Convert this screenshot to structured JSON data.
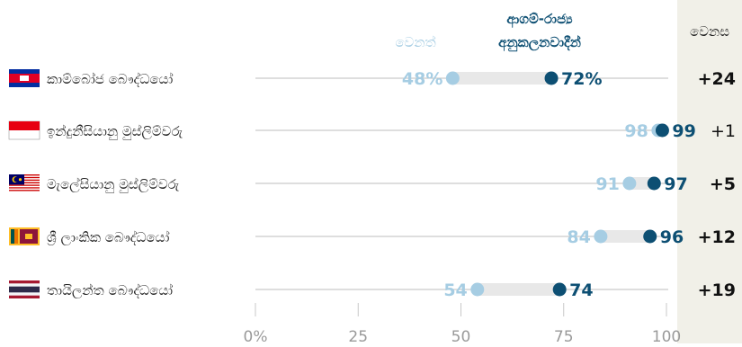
{
  "chart_data": {
    "type": "dot",
    "legend": {
      "other": "වෙනත්",
      "pro_religious": "ආගම්-රාජ්‍ය අනුකලනවාදීන්",
      "diff": "වෙනස"
    },
    "categories": [
      "කාම්බෝජ බෞද්ධයෝ",
      "ඉන්දුනීසියානු මුස්ලිම්වරු",
      "මැලේසියානු මුස්ලිම්වරු",
      "ශ්‍රී ලාංකික බෞද්ධයෝ",
      "තායිලන්ත බෞද්ධයෝ"
    ],
    "flags": [
      "kh",
      "id",
      "my",
      "lk",
      "th"
    ],
    "series": [
      {
        "name": "වෙනත්",
        "values": [
          48,
          98,
          91,
          84,
          54
        ],
        "labels": [
          "48%",
          "98",
          "91",
          "84",
          "54"
        ]
      },
      {
        "name": "ආගම්-රාජ්‍ය අනුකලනවාදීන්",
        "values": [
          72,
          99,
          97,
          96,
          74
        ],
        "labels": [
          "72%",
          "99",
          "97",
          "96",
          "74"
        ]
      }
    ],
    "diff": [
      "+24",
      "+1",
      "+5",
      "+12",
      "+19"
    ],
    "diff_bold": [
      true,
      false,
      true,
      true,
      true
    ],
    "x_ticks": [
      0,
      25,
      50,
      75,
      100
    ],
    "x_tick_labels": [
      "0%",
      "25",
      "50",
      "75",
      "100"
    ],
    "xlim": [
      0,
      100
    ],
    "colors": {
      "other": "#a6cde3",
      "pro": "#0d4f73",
      "range": "#e8e8e8",
      "diff_bg": "#f1f0e8",
      "line": "#bdbdbd"
    }
  }
}
